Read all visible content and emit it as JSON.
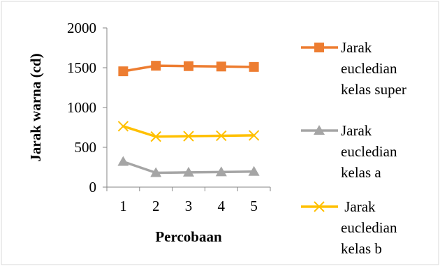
{
  "chart_data": {
    "type": "line",
    "xlabel": "Percobaan",
    "ylabel": "Jarak warna (cd)",
    "categories": [
      "1",
      "2",
      "3",
      "4",
      "5"
    ],
    "ylim": [
      0,
      2000
    ],
    "yticks": [
      "0",
      "500",
      "1000",
      "1500",
      "2000"
    ],
    "legend_position": "right",
    "grid": false,
    "series": [
      {
        "name_lines": [
          "Jarak",
          "eucledian",
          "kelas super"
        ],
        "values": [
          1455,
          1525,
          1520,
          1515,
          1510
        ],
        "color": "#ED7D31",
        "marker": "square"
      },
      {
        "name_lines": [
          "Jarak",
          "eucledian",
          "kelas a"
        ],
        "values": [
          320,
          180,
          185,
          190,
          195
        ],
        "color": "#A5A5A5",
        "marker": "triangle"
      },
      {
        "name_lines": [
          " Jarak",
          "eucledian",
          "kelas b"
        ],
        "values": [
          765,
          635,
          640,
          645,
          650
        ],
        "color": "#FFC000",
        "marker": "x"
      }
    ]
  }
}
